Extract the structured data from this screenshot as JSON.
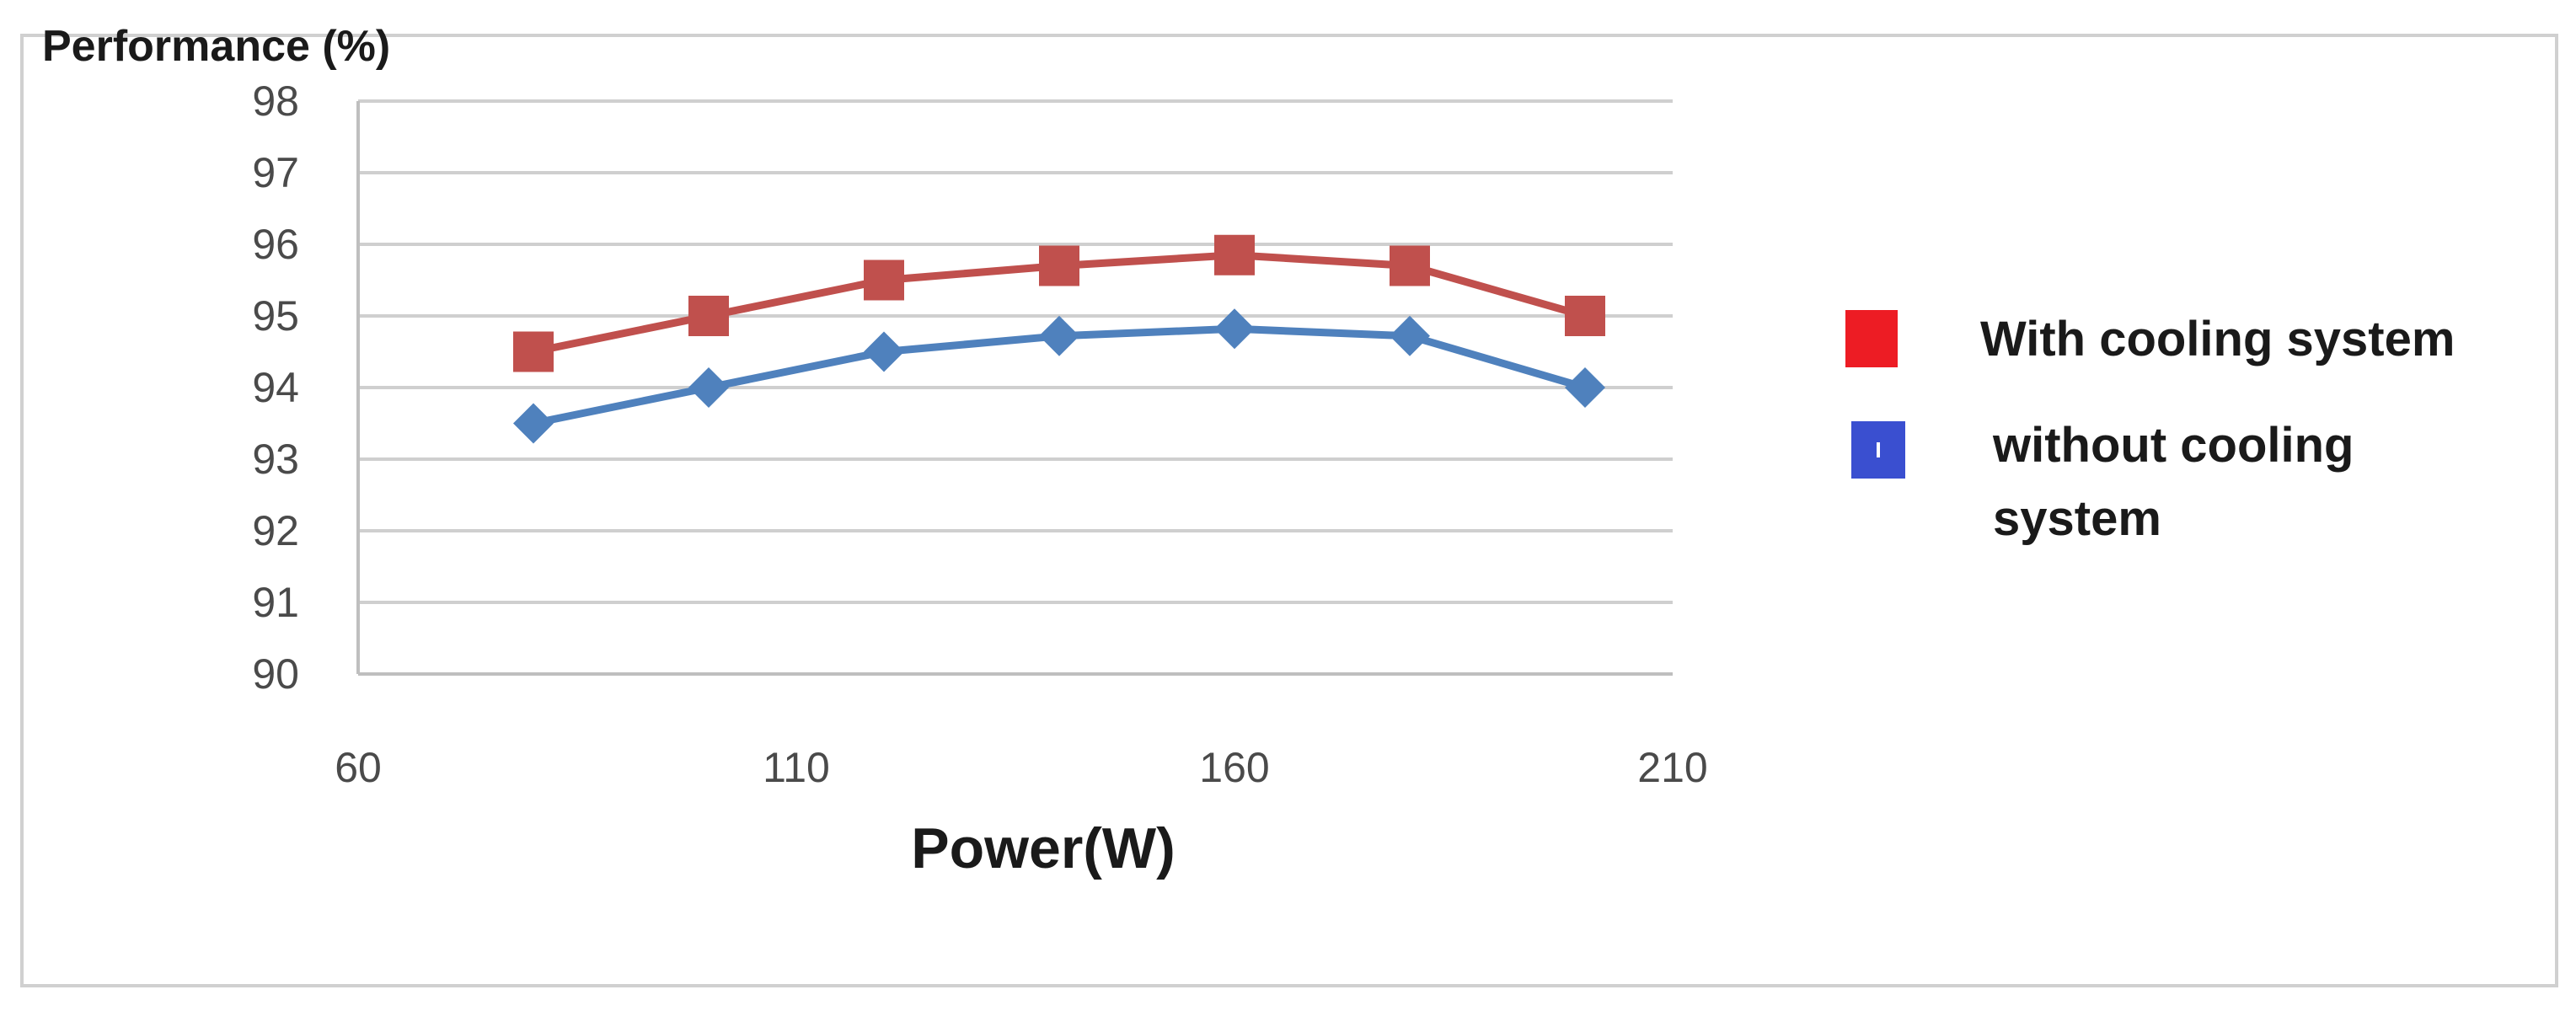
{
  "chart_data": {
    "type": "line",
    "ylabel": "Performance (%)",
    "xlabel": "Power(W)",
    "xlim": [
      60,
      210
    ],
    "ylim": [
      90,
      98
    ],
    "x_ticks": [
      60,
      110,
      160,
      210
    ],
    "y_ticks": [
      90,
      91,
      92,
      93,
      94,
      95,
      96,
      97,
      98
    ],
    "grid": true,
    "legend_position": "right",
    "x": [
      80,
      100,
      120,
      140,
      160,
      180,
      200
    ],
    "series": [
      {
        "name": "With cooling system",
        "values": [
          94.5,
          95.0,
          95.5,
          95.7,
          95.85,
          95.7,
          95.0
        ],
        "color": "#c0504d",
        "marker": "square"
      },
      {
        "name": "without cooling system",
        "values": [
          93.5,
          94.0,
          94.5,
          94.72,
          94.82,
          94.72,
          94.0
        ],
        "color": "#4f81bd",
        "marker": "diamond"
      }
    ],
    "legend": [
      {
        "lines": [
          "With cooling system"
        ],
        "color": "#ed1c24"
      },
      {
        "lines": [
          "without cooling",
          "system"
        ],
        "color": "#3a4fd0"
      }
    ]
  }
}
